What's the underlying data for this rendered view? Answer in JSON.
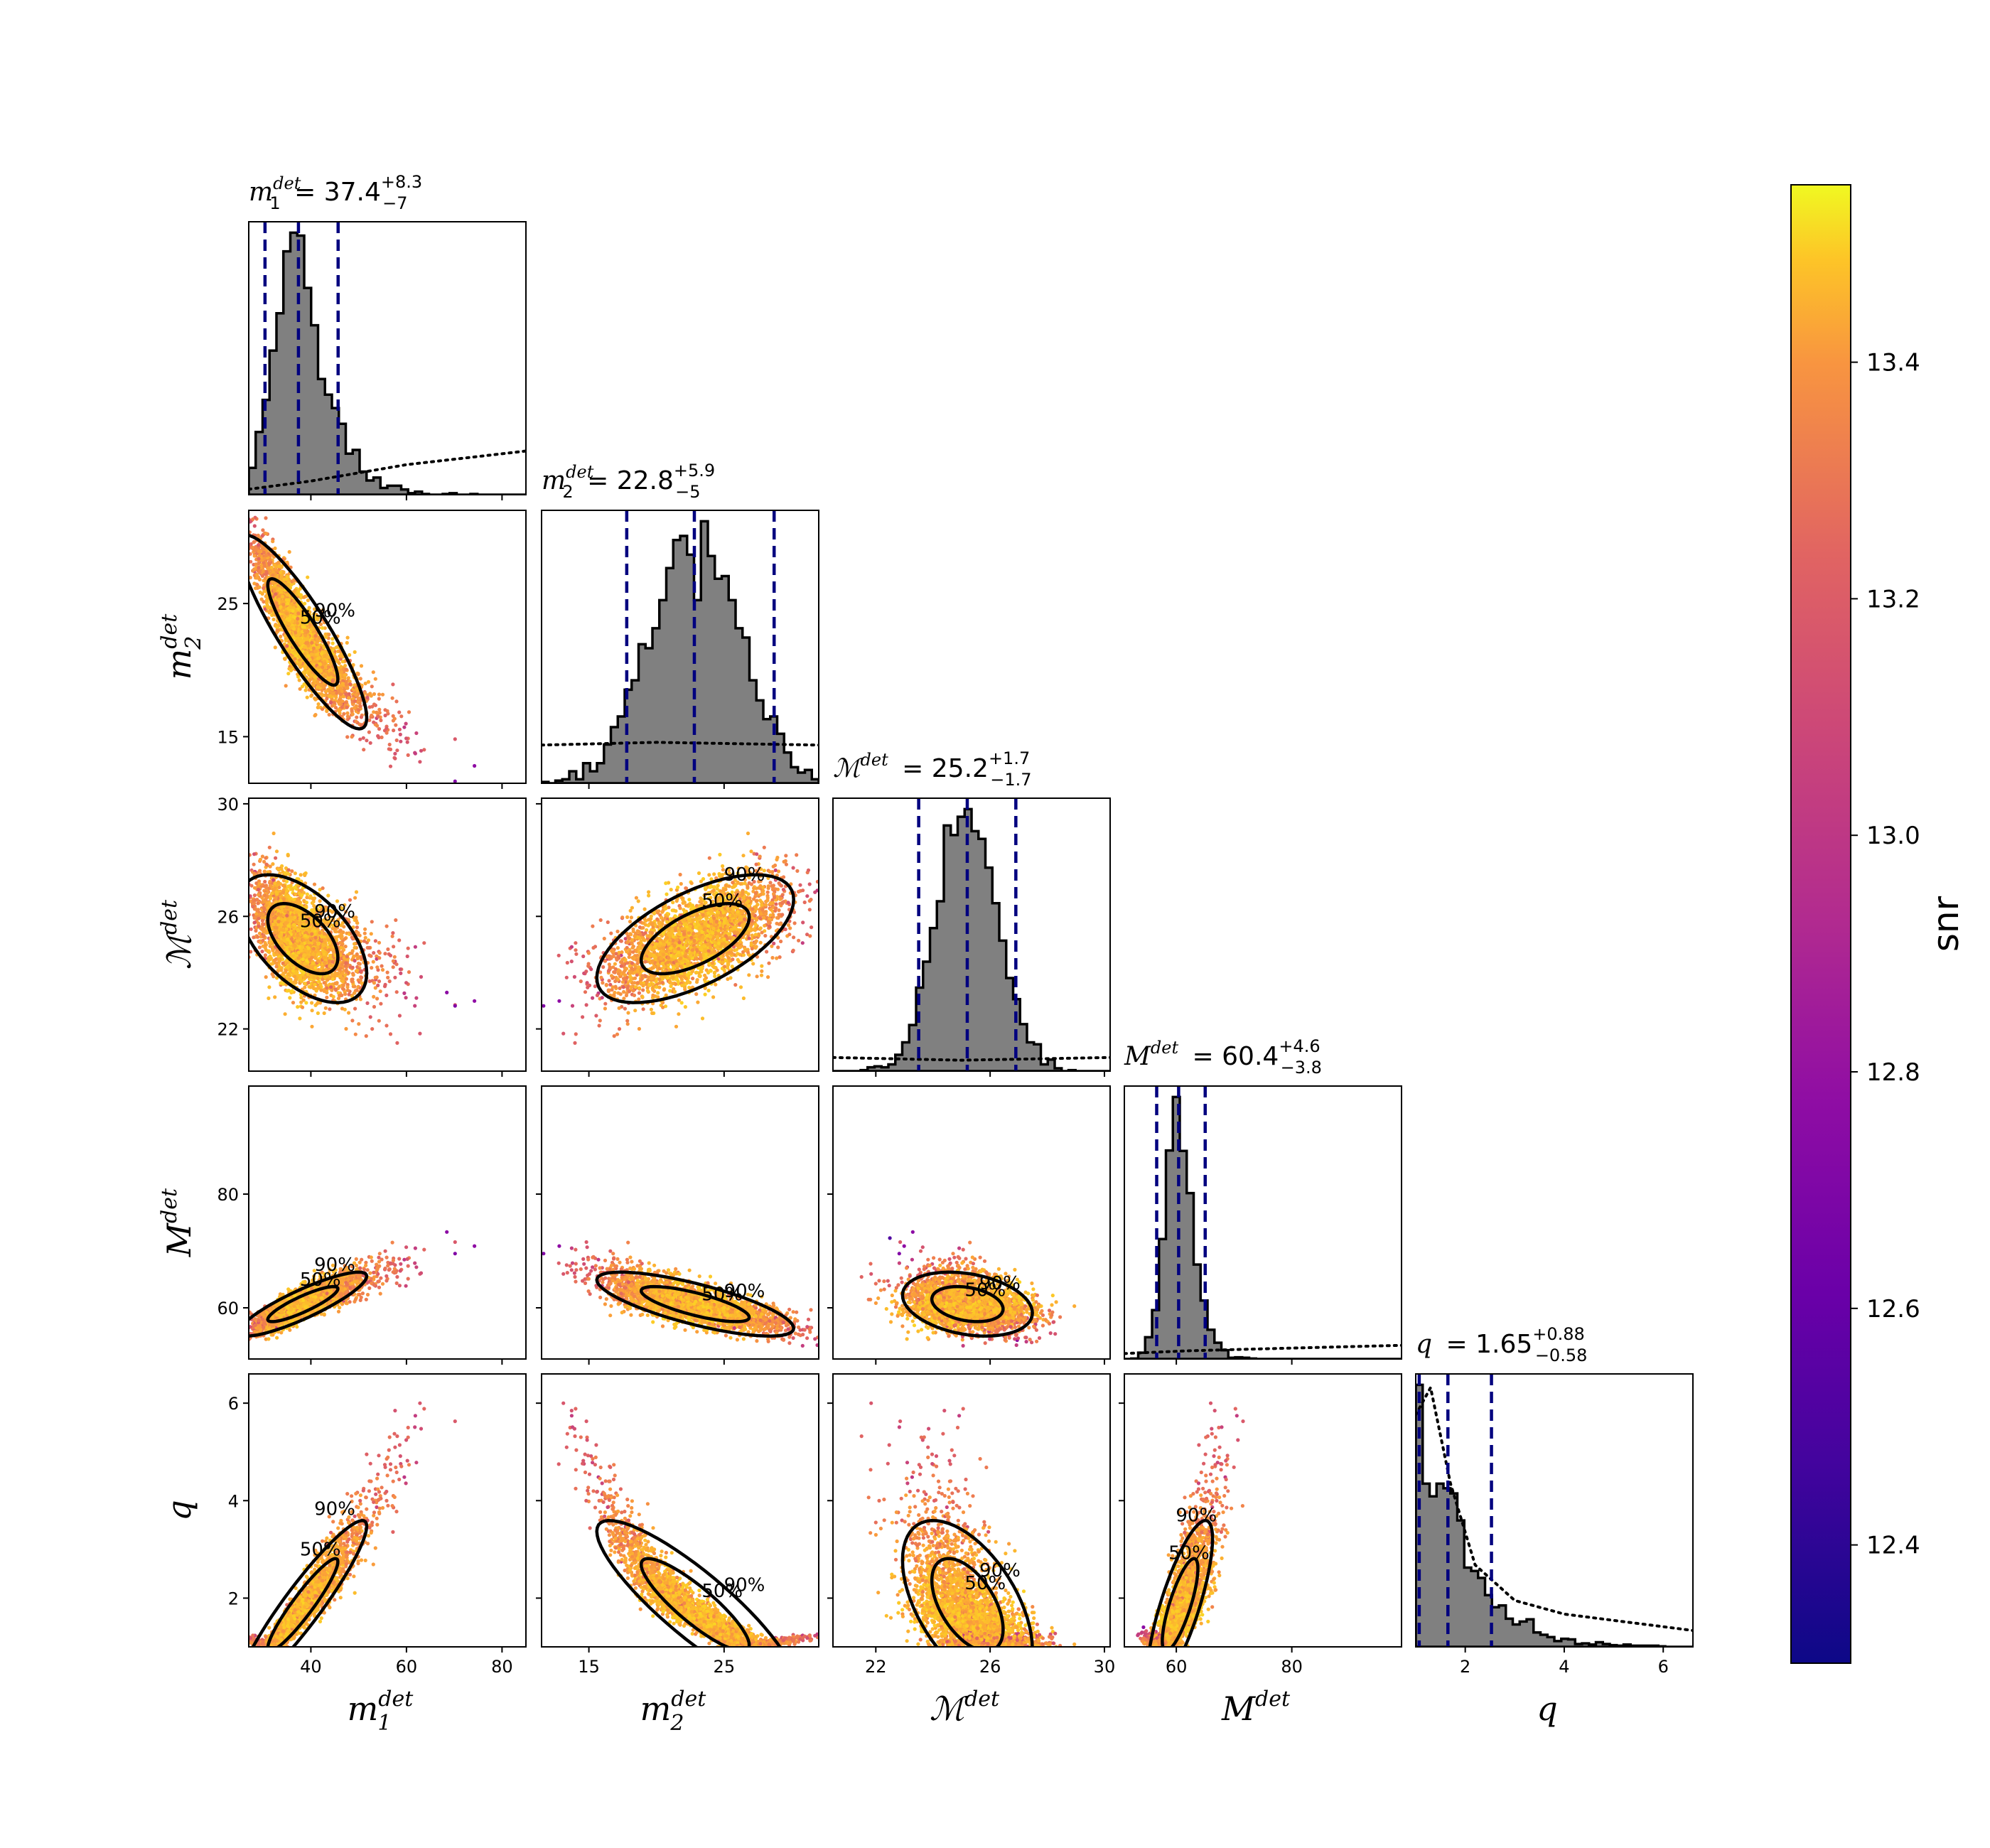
{
  "chart_data": {
    "type": "corner",
    "parameters": [
      {
        "key": "m1",
        "label": "m",
        "sup": "det",
        "sub": "1",
        "title_value": "37.4",
        "title_plus": "+8.3",
        "title_minus": "−7",
        "range": [
          27,
          85
        ],
        "ticks": [
          40,
          60,
          80
        ],
        "mean": 37.4,
        "sd": 4.6,
        "skew": 1.0,
        "quantiles": [
          30.4,
          37.4,
          45.7
        ],
        "prior_dotted": [
          [
            27,
            0.02
          ],
          [
            40,
            0.05
          ],
          [
            60,
            0.11
          ],
          [
            85,
            0.16
          ]
        ]
      },
      {
        "key": "m2",
        "label": "m",
        "sup": "det",
        "sub": "2",
        "title_value": "22.8",
        "title_plus": "+5.9",
        "title_minus": "−5",
        "range": [
          11.5,
          32
        ],
        "ticks": [
          15,
          25
        ],
        "mean": 22.9,
        "sd": 3.3,
        "skew": 0,
        "quantiles": [
          17.8,
          22.8,
          28.7
        ],
        "prior_dotted": [
          [
            11.5,
            0.14
          ],
          [
            20,
            0.15
          ],
          [
            32,
            0.14
          ]
        ]
      },
      {
        "key": "mc",
        "label": "ℳ",
        "sup": "det",
        "sub": "",
        "title_value": "25.2",
        "title_plus": "+1.7",
        "title_minus": "−1.7",
        "range": [
          20.5,
          30.2
        ],
        "ticks": [
          22,
          26,
          30
        ],
        "mean": 25.2,
        "sd": 1.05,
        "skew": 0,
        "quantiles": [
          23.5,
          25.2,
          26.9
        ],
        "prior_dotted": [
          [
            20.5,
            0.05
          ],
          [
            25,
            0.04
          ],
          [
            30.2,
            0.05
          ]
        ]
      },
      {
        "key": "Mt",
        "label": "M",
        "sup": "det",
        "sub": "",
        "title_value": "60.4",
        "title_plus": "+4.6",
        "title_minus": "−3.8",
        "range": [
          51,
          99
        ],
        "ticks": [
          60,
          80
        ],
        "mean": 60.4,
        "sd": 2.7,
        "skew": 0.6,
        "quantiles": [
          56.6,
          60.4,
          65.0
        ],
        "prior_dotted": [
          [
            51,
            0.02
          ],
          [
            62,
            0.03
          ],
          [
            80,
            0.04
          ],
          [
            99,
            0.05
          ]
        ]
      },
      {
        "key": "q",
        "label": "q",
        "sup": "",
        "sub": "",
        "title_value": "1.65",
        "title_plus": "+0.88",
        "title_minus": "−0.58",
        "range": [
          1.0,
          6.6
        ],
        "ticks": [
          2,
          4,
          6
        ],
        "mean": 1.65,
        "sd": 0.45,
        "skew": 1.4,
        "quantiles": [
          1.07,
          1.65,
          2.53
        ],
        "prior_dotted": [
          [
            1.0,
            0.85
          ],
          [
            1.3,
            0.95
          ],
          [
            1.7,
            0.6
          ],
          [
            2.2,
            0.3
          ],
          [
            3,
            0.17
          ],
          [
            4,
            0.12
          ],
          [
            6.6,
            0.06
          ]
        ]
      }
    ],
    "y_ticks": {
      "m2": [
        15,
        25
      ],
      "mc": [
        22,
        26,
        30
      ],
      "Mt": [
        60,
        80
      ],
      "q": [
        2,
        4,
        6
      ]
    },
    "correlations": {
      "m2|m1": -0.9,
      "mc|m1": 0.05,
      "mc|m2": 0.75,
      "Mt|m1": 0.88,
      "Mt|m2": -0.1,
      "Mt|mc": 0.55,
      "q|m1": 0.92,
      "q|m2": -0.93,
      "q|mc": -0.15,
      "q|Mt": 0.6
    },
    "contour_levels": [
      "50%",
      "90%"
    ],
    "colorbar": {
      "label": "snr",
      "min": 12.3,
      "max": 13.55,
      "ticks": [
        "12.4",
        "12.6",
        "12.8",
        "13.0",
        "13.2",
        "13.4"
      ],
      "tick_values": [
        12.4,
        12.6,
        12.8,
        13.0,
        13.2,
        13.4
      ],
      "colormap": "plasma"
    },
    "colors": {
      "hist_fill": "#808080",
      "quantile_line": "#00007f",
      "contour": "#000000",
      "prior": "#000000"
    }
  }
}
